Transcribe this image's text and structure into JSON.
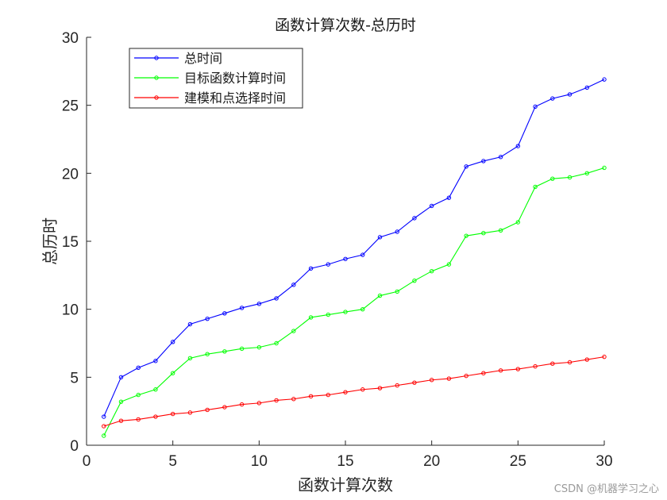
{
  "chart_data": {
    "type": "line",
    "title": "函数计算次数-总历时",
    "xlabel": "函数计算次数",
    "ylabel": "总历时",
    "xlim": [
      0,
      30
    ],
    "ylim": [
      0,
      30
    ],
    "xticks": [
      "0",
      "5",
      "10",
      "15",
      "20",
      "25",
      "30"
    ],
    "yticks": [
      "0",
      "5",
      "10",
      "15",
      "20",
      "25",
      "30"
    ],
    "grid": false,
    "legend_position": "top-left",
    "x": [
      1,
      2,
      3,
      4,
      5,
      6,
      7,
      8,
      9,
      10,
      11,
      12,
      13,
      14,
      15,
      16,
      17,
      18,
      19,
      20,
      21,
      22,
      23,
      24,
      25,
      26,
      27,
      28,
      29,
      30
    ],
    "series": [
      {
        "name": "总时间",
        "color": "#0000ff",
        "marker": "circle",
        "values": [
          2.1,
          5.0,
          5.7,
          6.2,
          7.6,
          8.9,
          9.3,
          9.7,
          10.1,
          10.4,
          10.8,
          11.8,
          13.0,
          13.3,
          13.7,
          14.0,
          15.3,
          15.7,
          16.7,
          17.6,
          18.2,
          20.5,
          20.9,
          21.2,
          22.0,
          24.9,
          25.5,
          25.8,
          26.3,
          26.9
        ]
      },
      {
        "name": "目标函数计算时间",
        "color": "#00ff00",
        "marker": "circle",
        "values": [
          0.7,
          3.2,
          3.7,
          4.1,
          5.3,
          6.4,
          6.7,
          6.9,
          7.1,
          7.2,
          7.5,
          8.4,
          9.4,
          9.6,
          9.8,
          10.0,
          11.0,
          11.3,
          12.1,
          12.8,
          13.3,
          15.4,
          15.6,
          15.8,
          16.4,
          19.0,
          19.6,
          19.7,
          20.0,
          20.4
        ]
      },
      {
        "name": "建模和点选择时间",
        "color": "#ff0000",
        "marker": "circle",
        "values": [
          1.4,
          1.8,
          1.9,
          2.1,
          2.3,
          2.4,
          2.6,
          2.8,
          3.0,
          3.1,
          3.3,
          3.4,
          3.6,
          3.7,
          3.9,
          4.1,
          4.2,
          4.4,
          4.6,
          4.8,
          4.9,
          5.1,
          5.3,
          5.5,
          5.6,
          5.8,
          6.0,
          6.1,
          6.3,
          6.5
        ]
      }
    ]
  },
  "watermark": "CSDN @机器学习之心"
}
